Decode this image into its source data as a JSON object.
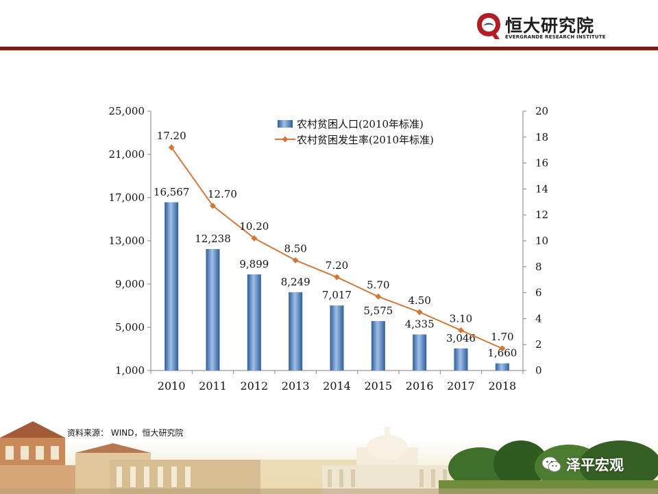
{
  "brand": {
    "name_cn": "恒大研究院",
    "name_en": "EVERGRANDE RESEARCH INSTITUTE",
    "primary_color": "#7b1a1a"
  },
  "chart_data": {
    "type": "bar+line",
    "categories": [
      "2010",
      "2011",
      "2012",
      "2013",
      "2014",
      "2015",
      "2016",
      "2017",
      "2018"
    ],
    "series": [
      {
        "name": "农村贫困人口(2010年标准)",
        "type": "bar",
        "axis": "left",
        "values": [
          16567,
          12238,
          9899,
          8249,
          7017,
          5575,
          4335,
          3046,
          1660
        ],
        "labels": [
          "16,567",
          "12,238",
          "9,899",
          "8,249",
          "7,017",
          "5,575",
          "4,335",
          "3,046",
          "1,660"
        ],
        "color": "#4f7fbf"
      },
      {
        "name": "农村贫困发生率(2010年标准)",
        "type": "line",
        "axis": "right",
        "values": [
          17.2,
          12.7,
          10.2,
          8.5,
          7.2,
          5.7,
          4.5,
          3.1,
          1.7
        ],
        "labels": [
          "17.20",
          "12.70",
          "10.20",
          "8.50",
          "7.20",
          "5.70",
          "4.50",
          "3.10",
          "1.70"
        ],
        "color": "#d0773a"
      }
    ],
    "y_left": {
      "min": 1000,
      "max": 25000,
      "ticks": [
        1000,
        5000,
        9000,
        13000,
        17000,
        21000,
        25000
      ],
      "tick_labels": [
        "1,000",
        "5,000",
        "9,000",
        "13,000",
        "17,000",
        "21,000",
        "25,000"
      ]
    },
    "y_right": {
      "min": 0,
      "max": 20,
      "ticks": [
        0,
        2,
        4,
        6,
        8,
        10,
        12,
        14,
        16,
        18,
        20
      ],
      "tick_labels": [
        "0",
        "2",
        "4",
        "6",
        "8",
        "10",
        "12",
        "14",
        "16",
        "18",
        "20"
      ]
    },
    "legend_position": "top-center",
    "grid": false
  },
  "source": {
    "label": "资料来源：",
    "text": "WIND，恒大研究院"
  },
  "watermark": {
    "text": "泽平宏观"
  }
}
